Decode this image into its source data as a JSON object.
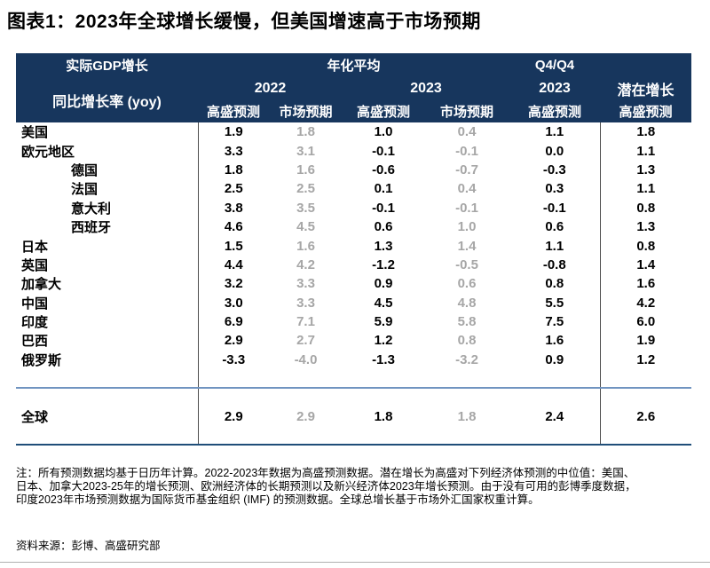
{
  "title": "图表1：2023年全球增长缓慢，但美国增速高于市场预期",
  "table": {
    "header": {
      "real_gdp": "实际GDP增长",
      "yoy": "同比增长率 (yoy)",
      "annualized": "年化平均",
      "q4q4": "Q4/Q4",
      "y2022": "2022",
      "y2023": "2023",
      "q4_2023": "2023",
      "potential": "潜在增长",
      "gs": "高盛预测",
      "mkt": "市场预期"
    }
  },
  "chart_data": {
    "type": "table",
    "title": "图表1：2023年全球增长缓慢，但美国增速高于市场预期",
    "columns": [
      "实际GDP增长 同比增长率 (yoy)",
      "年化平均 2022 高盛预测",
      "年化平均 2022 市场预期",
      "年化平均 2023 高盛预测",
      "年化平均 2023 市场预期",
      "Q4/Q4 2023 高盛预测",
      "潜在增长 高盛预测"
    ],
    "rows": [
      {
        "name": "美国",
        "indent": false,
        "values": [
          "1.9",
          "1.8",
          "1.0",
          "0.4",
          "1.1",
          "1.8"
        ]
      },
      {
        "name": "欧元地区",
        "indent": false,
        "values": [
          "3.3",
          "3.1",
          "-0.1",
          "-0.1",
          "0.0",
          "1.1"
        ]
      },
      {
        "name": "德国",
        "indent": true,
        "values": [
          "1.8",
          "1.6",
          "-0.6",
          "-0.7",
          "-0.3",
          "1.3"
        ]
      },
      {
        "name": "法国",
        "indent": true,
        "values": [
          "2.5",
          "2.5",
          "0.1",
          "0.4",
          "0.3",
          "1.1"
        ]
      },
      {
        "name": "意大利",
        "indent": true,
        "values": [
          "3.8",
          "3.5",
          "-0.1",
          "-0.1",
          "-0.1",
          "0.8"
        ]
      },
      {
        "name": "西班牙",
        "indent": true,
        "values": [
          "4.6",
          "4.5",
          "0.6",
          "1.0",
          "0.6",
          "1.3"
        ]
      },
      {
        "name": "日本",
        "indent": false,
        "values": [
          "1.5",
          "1.6",
          "1.3",
          "1.4",
          "1.1",
          "0.8"
        ]
      },
      {
        "name": "英国",
        "indent": false,
        "values": [
          "4.4",
          "4.2",
          "-1.2",
          "-0.5",
          "-0.8",
          "1.4"
        ]
      },
      {
        "name": "加拿大",
        "indent": false,
        "values": [
          "3.2",
          "3.3",
          "0.9",
          "0.6",
          "0.8",
          "1.6"
        ]
      },
      {
        "name": "中国",
        "indent": false,
        "values": [
          "3.0",
          "3.3",
          "4.5",
          "4.8",
          "5.5",
          "4.2"
        ]
      },
      {
        "name": "印度",
        "indent": false,
        "values": [
          "6.9",
          "7.1",
          "5.9",
          "5.8",
          "7.5",
          "6.0"
        ]
      },
      {
        "name": "巴西",
        "indent": false,
        "values": [
          "2.9",
          "2.7",
          "1.2",
          "0.8",
          "1.6",
          "1.9"
        ]
      },
      {
        "name": "俄罗斯",
        "indent": false,
        "values": [
          "-3.3",
          "-4.0",
          "-1.3",
          "-3.2",
          "0.9",
          "1.2"
        ]
      }
    ],
    "total": {
      "name": "全球",
      "values": [
        "2.9",
        "2.9",
        "1.8",
        "1.8",
        "2.4",
        "2.6"
      ]
    }
  },
  "footnote": {
    "line1": "注：所有预测数据均基于日历年计算。2022-2023年数据为高盛预测数据。潜在增长为高盛对下列经济体预测的中位值：美国、",
    "line2": "日本、加拿大2023-25年的增长预测、欧洲经济体的长期预测以及新兴经济体2023年增长预测。由于没有可用的彭博季度数据，",
    "line3": "印度2023年市场预测数据为国际货币基金组织 (IMF) 的预测数据。全球总增长基于市场外汇国家权重计算。"
  },
  "source": "资料来源：彭博、高盛研究部",
  "colors": {
    "header_bg": "#17365d",
    "header_text": "#ffffff",
    "gs_value_text": "#000000",
    "market_value_text": "#a6a6a6",
    "divider_line": "#4d4d4d",
    "global_top_line": "#7094c0",
    "table_bottom_line": "#1f4e79",
    "page_bottom_rule": "#b0b0b0"
  }
}
